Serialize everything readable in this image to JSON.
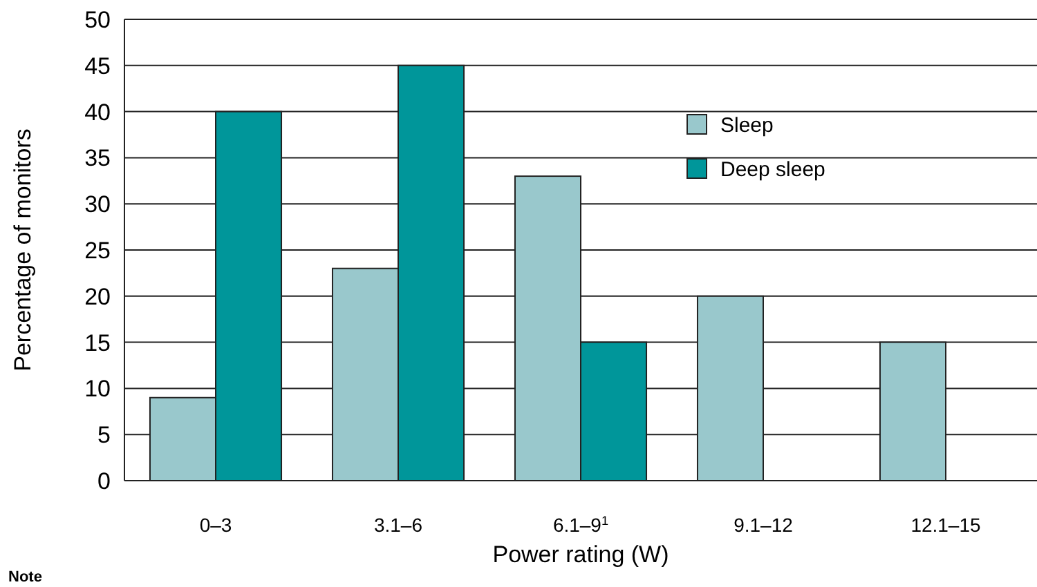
{
  "chart_data": {
    "type": "bar",
    "xlabel": "Power rating (W)",
    "ylabel": "Percentage of monitors",
    "categories": [
      "0–3",
      "3.1–6",
      "6.1–9$^{1}$",
      "9.1–12",
      "12.1–15"
    ],
    "series": [
      {
        "name": "Sleep",
        "color": "#99c8cc",
        "values": [
          9,
          23,
          33,
          20,
          15
        ]
      },
      {
        "name": "Deep sleep",
        "color": "#00969a",
        "values": [
          40,
          45,
          15,
          null,
          null
        ]
      }
    ],
    "ylim": [
      0,
      50
    ],
    "yticks": [
      0,
      5,
      10,
      15,
      20,
      25,
      30,
      35,
      40,
      45,
      50
    ],
    "grid": "y",
    "legend": "top right",
    "annotations": [
      "Note"
    ]
  }
}
